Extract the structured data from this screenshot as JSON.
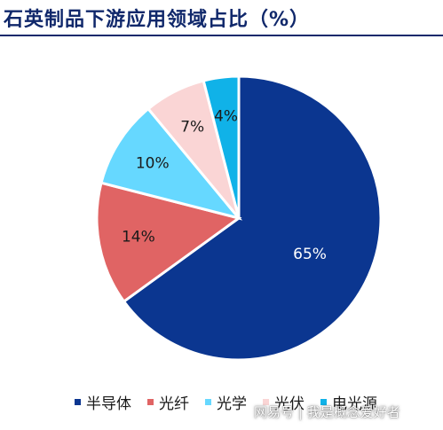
{
  "chart_data": {
    "type": "pie",
    "title": "石英制品下游应用领域占比（%）",
    "categories": [
      "半导体",
      "光纤",
      "光学",
      "光伏",
      "电光源"
    ],
    "values": [
      65,
      14,
      10,
      7,
      4
    ],
    "value_labels": [
      "65%",
      "14%",
      "10%",
      "7%",
      "4%"
    ],
    "colors": [
      "#0b3690",
      "#e06464",
      "#66d8ff",
      "#fad5d5",
      "#10b2e8"
    ],
    "legend_position": "bottom"
  },
  "watermark": "网易号 | 我是概念爱好者"
}
